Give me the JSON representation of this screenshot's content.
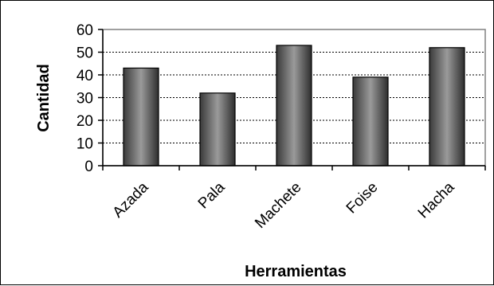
{
  "chart_data": {
    "type": "bar",
    "categories": [
      "Azada",
      "Pala",
      "Machete",
      "Foise",
      "Hacha"
    ],
    "values": [
      43,
      32,
      53,
      39,
      52
    ],
    "ylabel": "Cantidad",
    "xlabel": "Herramientas",
    "ylim": [
      0,
      60
    ],
    "yticks": [
      0,
      10,
      20,
      30,
      40,
      50,
      60
    ],
    "grid": "horizontal-dashed",
    "legend": "none"
  }
}
